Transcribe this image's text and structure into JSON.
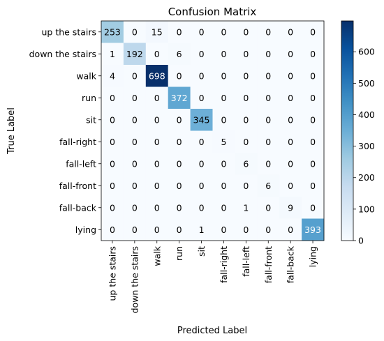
{
  "chart_data": {
    "type": "heatmap",
    "title": "Confusion Matrix",
    "xlabel": "Predicted Label",
    "ylabel": "True Label",
    "row_labels": [
      "up the stairs",
      "down the stairs",
      "walk",
      "run",
      "sit",
      "fall-right",
      "fall-left",
      "fall-front",
      "fall-back",
      "lying"
    ],
    "col_labels": [
      "up the stairs",
      "down the stairs",
      "walk",
      "run",
      "sit",
      "fall-right",
      "fall-left",
      "fall-front",
      "fall-back",
      "lying"
    ],
    "matrix": [
      [
        253,
        0,
        15,
        0,
        0,
        0,
        0,
        0,
        0,
        0
      ],
      [
        1,
        192,
        0,
        6,
        0,
        0,
        0,
        0,
        0,
        0
      ],
      [
        4,
        0,
        698,
        0,
        0,
        0,
        0,
        0,
        0,
        0
      ],
      [
        0,
        0,
        0,
        372,
        0,
        0,
        0,
        0,
        0,
        0
      ],
      [
        0,
        0,
        0,
        0,
        345,
        0,
        0,
        0,
        0,
        0
      ],
      [
        0,
        0,
        0,
        0,
        0,
        5,
        0,
        0,
        0,
        0
      ],
      [
        0,
        0,
        0,
        0,
        0,
        0,
        6,
        0,
        0,
        0
      ],
      [
        0,
        0,
        0,
        0,
        0,
        0,
        0,
        6,
        0,
        0
      ],
      [
        0,
        0,
        0,
        0,
        0,
        0,
        1,
        0,
        9,
        0
      ],
      [
        0,
        0,
        0,
        0,
        1,
        0,
        0,
        0,
        0,
        393
      ]
    ],
    "colorbar": {
      "min": 0,
      "max": 698,
      "ticks": [
        0,
        100,
        200,
        300,
        400,
        500,
        600
      ],
      "colormap": "Blues"
    },
    "grid": false
  }
}
